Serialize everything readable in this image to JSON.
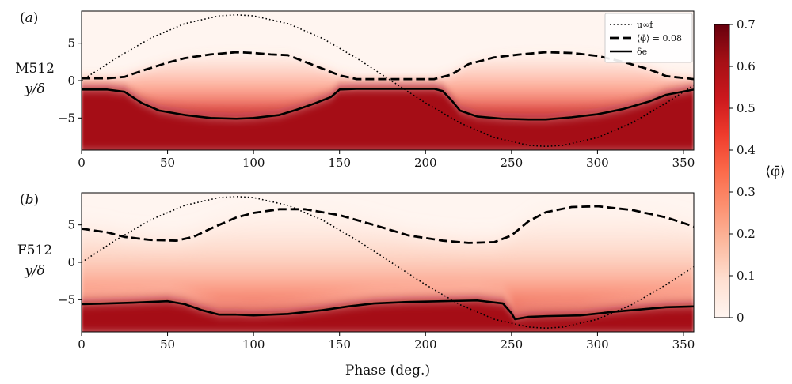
{
  "chart_data": [
    {
      "type": "heatmap",
      "panel_tag": "(a)",
      "case_label": "M512",
      "ylabel": "y/δ",
      "xlabel": "",
      "xlim": [
        0,
        356
      ],
      "ylim": [
        -9.3,
        9.3
      ],
      "xticks": [
        0,
        50,
        100,
        150,
        200,
        250,
        300,
        350
      ],
      "yticks": [
        -5,
        0,
        5
      ],
      "field": "⟨φ̄⟩ (concentration, saturated ~0.65 below δe, fading to 0 above ⟨φ̄⟩ = 0.08 contour)",
      "series": [
        {
          "name": "u∞f",
          "style": "dotted",
          "x": [
            0,
            20,
            40,
            60,
            80,
            90,
            100,
            120,
            140,
            160,
            180,
            200,
            220,
            240,
            260,
            270,
            280,
            300,
            320,
            340,
            356
          ],
          "y": [
            0,
            2.99,
            5.66,
            7.62,
            8.66,
            8.8,
            8.66,
            7.62,
            5.66,
            2.99,
            0,
            -2.99,
            -5.66,
            -7.62,
            -8.66,
            -8.8,
            -8.66,
            -7.62,
            -5.66,
            -2.99,
            -0.61
          ]
        },
        {
          "name": "⟨φ̄⟩ = 0.08",
          "style": "dashed",
          "x": [
            0,
            15,
            25,
            35,
            50,
            60,
            75,
            90,
            100,
            110,
            120,
            130,
            140,
            150,
            160,
            175,
            185,
            195,
            205,
            215,
            225,
            240,
            255,
            270,
            285,
            300,
            315,
            330,
            340,
            356
          ],
          "y": [
            0.3,
            0.3,
            0.5,
            1.3,
            2.4,
            3.0,
            3.5,
            3.8,
            3.7,
            3.5,
            3.4,
            2.5,
            1.6,
            0.7,
            0.2,
            0.2,
            0.2,
            0.2,
            0.2,
            0.8,
            2.2,
            3.1,
            3.5,
            3.8,
            3.7,
            3.3,
            2.5,
            1.5,
            0.6,
            0.2
          ]
        },
        {
          "name": "δe",
          "style": "solid",
          "x": [
            0,
            15,
            25,
            35,
            45,
            60,
            75,
            90,
            100,
            115,
            125,
            135,
            145,
            150,
            160,
            175,
            190,
            205,
            210,
            215,
            220,
            230,
            245,
            260,
            270,
            285,
            300,
            315,
            330,
            340,
            356
          ],
          "y": [
            -1.2,
            -1.2,
            -1.5,
            -3.0,
            -4.0,
            -4.6,
            -5.0,
            -5.1,
            -5.0,
            -4.6,
            -3.9,
            -3.1,
            -2.2,
            -1.2,
            -1.1,
            -1.1,
            -1.1,
            -1.1,
            -1.4,
            -2.6,
            -4.0,
            -4.8,
            -5.1,
            -5.2,
            -5.2,
            -4.9,
            -4.5,
            -3.8,
            -2.8,
            -1.9,
            -1.2
          ]
        }
      ]
    },
    {
      "type": "heatmap",
      "panel_tag": "(b)",
      "case_label": "F512",
      "ylabel": "y/δ",
      "xlabel": "Phase (deg.)",
      "xlim": [
        0,
        356
      ],
      "ylim": [
        -9.3,
        9.3
      ],
      "xticks": [
        0,
        50,
        100,
        150,
        200,
        250,
        300,
        350
      ],
      "yticks": [
        -5,
        0,
        5
      ],
      "field": "⟨φ̄⟩ (concentration, saturated ~0.65 below δe, fading to 0 above ⟨φ̄⟩ = 0.08 contour)",
      "series": [
        {
          "name": "u∞f",
          "style": "dotted",
          "x": [
            0,
            20,
            40,
            60,
            80,
            90,
            100,
            120,
            140,
            160,
            180,
            200,
            220,
            240,
            260,
            270,
            280,
            300,
            320,
            340,
            356
          ],
          "y": [
            0,
            2.99,
            5.66,
            7.62,
            8.66,
            8.8,
            8.66,
            7.62,
            5.66,
            2.99,
            0,
            -2.99,
            -5.66,
            -7.62,
            -8.66,
            -8.8,
            -8.66,
            -7.62,
            -5.66,
            -2.99,
            -0.61
          ]
        },
        {
          "name": "⟨φ̄⟩ = 0.08",
          "style": "dashed",
          "x": [
            0,
            15,
            25,
            40,
            55,
            65,
            75,
            90,
            100,
            115,
            130,
            150,
            170,
            190,
            210,
            225,
            240,
            250,
            260,
            270,
            285,
            300,
            320,
            340,
            356
          ],
          "y": [
            4.5,
            4.0,
            3.4,
            3.0,
            2.9,
            3.4,
            4.5,
            6.0,
            6.6,
            7.1,
            7.1,
            6.3,
            5.0,
            3.6,
            2.9,
            2.6,
            2.7,
            3.6,
            5.5,
            6.7,
            7.4,
            7.5,
            7.0,
            6.0,
            4.8
          ]
        },
        {
          "name": "δe",
          "style": "solid",
          "x": [
            0,
            15,
            30,
            50,
            60,
            70,
            80,
            90,
            100,
            120,
            140,
            155,
            170,
            190,
            210,
            230,
            245,
            250,
            252,
            260,
            270,
            290,
            310,
            330,
            340,
            356
          ],
          "y": [
            -5.6,
            -5.5,
            -5.4,
            -5.2,
            -5.6,
            -6.4,
            -7.0,
            -7.0,
            -7.1,
            -6.9,
            -6.4,
            -5.9,
            -5.5,
            -5.3,
            -5.2,
            -5.1,
            -5.5,
            -6.8,
            -7.6,
            -7.3,
            -7.2,
            -7.1,
            -6.6,
            -6.2,
            -6.0,
            -5.9
          ]
        }
      ]
    }
  ],
  "legend": {
    "entries": [
      "u∞f",
      "⟨φ̄⟩ = 0.08",
      "δe"
    ],
    "placement": "top-right of panel (a)"
  },
  "colorbar": {
    "label": "⟨φ̄⟩",
    "range": [
      0,
      0.7
    ],
    "ticks": [
      "0",
      "0.1",
      "0.2",
      "0.3",
      "0.4",
      "0.5",
      "0.6",
      "0.7"
    ],
    "colormap": [
      "#fff5f0",
      "#fee0d2",
      "#fcbba1",
      "#fc9272",
      "#fb6a4a",
      "#ef3b2c",
      "#cb181d",
      "#a50f15",
      "#67000d"
    ]
  }
}
